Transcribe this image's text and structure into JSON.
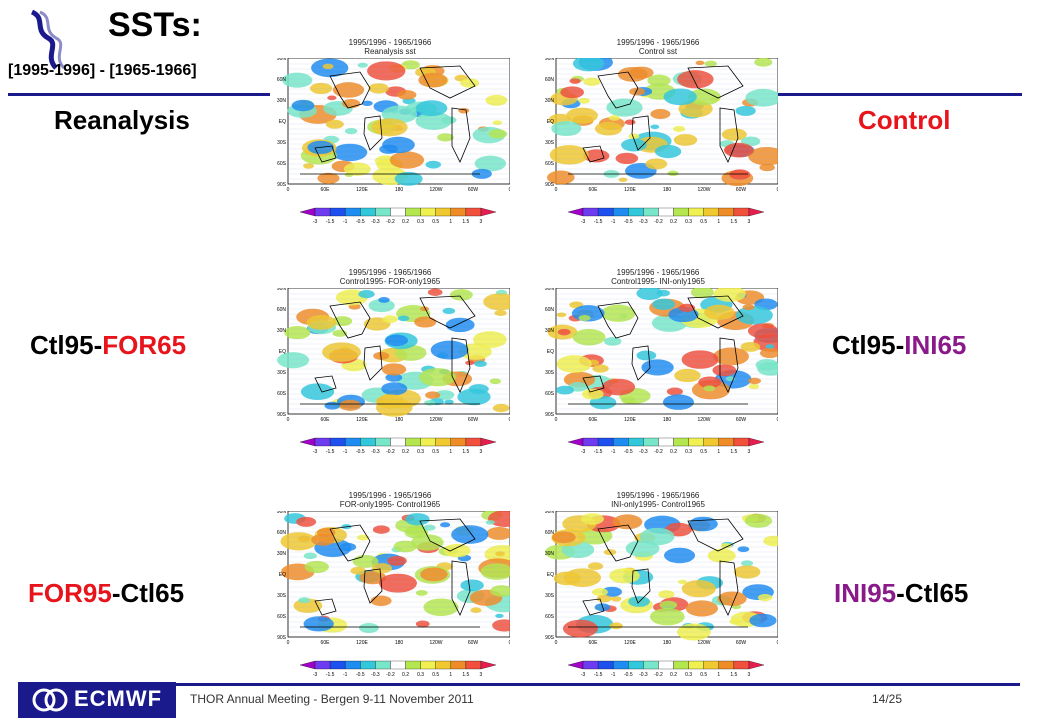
{
  "slide": {
    "title": "SSTs:",
    "subtitle": "[1995-1996] - [1965-1966]",
    "footer": "THOR Annual Meeting - Bergen  9-11 November 2011",
    "page": "14/25",
    "logo_text": "ECMWF"
  },
  "labels": {
    "reanalysis": "Reanalysis",
    "control": "Control",
    "ctl95_for65": {
      "a": "Ctl95-",
      "b": "FOR65"
    },
    "ctl95_ini65": {
      "a": "Ctl95-",
      "b": "INI65"
    },
    "for95_ctl65": {
      "a": "FOR95",
      "b": "-Ctl65"
    },
    "ini95_ctl65": {
      "a": "INI95",
      "b": "-Ctl65"
    }
  },
  "panels": [
    {
      "title": "1995/1996 - 1965/1966",
      "sub": "Reanalysis sst"
    },
    {
      "title": "1995/1996 - 1965/1966",
      "sub": "Control sst"
    },
    {
      "title": "1995/1996 - 1965/1966",
      "sub": "Control1995- FOR-only1965"
    },
    {
      "title": "1995/1996 - 1965/1966",
      "sub": "Control1995- INI-only1965"
    },
    {
      "title": "1995/1996 - 1965/1966",
      "sub": "FOR-only1995- Control1965"
    },
    {
      "title": "1995/1996 - 1965/1966",
      "sub": "INI-only1995- Control1965"
    }
  ],
  "colorbar": {
    "ticks": [
      "-3",
      "-1.5",
      "-1",
      "-0.5",
      "-0.3",
      "-0.2",
      "0.2",
      "0.3",
      "0.5",
      "1",
      "1.5",
      "3"
    ],
    "colors": [
      "#a000c8",
      "#6e3cf0",
      "#1e50f0",
      "#1e8cf0",
      "#32c8dc",
      "#78e6c8",
      "#ffffff",
      "#b4e650",
      "#f0f050",
      "#f0c830",
      "#f08c28",
      "#f0503c",
      "#e61e50"
    ]
  },
  "map_axes": {
    "lat": [
      "90N",
      "60N",
      "30N",
      "EQ",
      "30S",
      "60S",
      "90S"
    ],
    "lon": [
      "0",
      "60E",
      "120E",
      "180",
      "120W",
      "60W",
      "0"
    ]
  },
  "colors": {
    "accent_blue": "#1a1a8c",
    "red": "#e8141c",
    "purple": "#8a1a8a"
  }
}
